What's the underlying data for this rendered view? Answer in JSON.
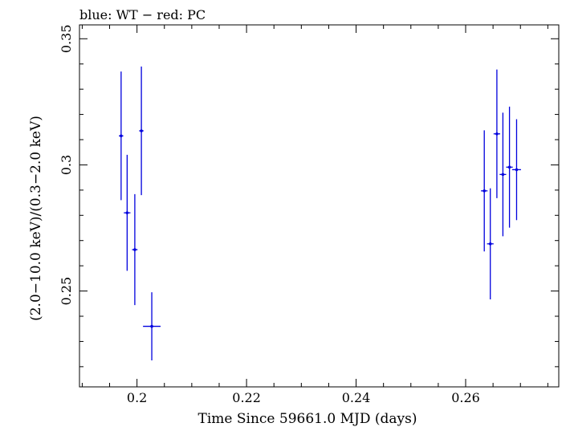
{
  "chart_data": {
    "type": "scatter",
    "title": "blue: WT − red: PC",
    "xlabel": "Time Since 59661.0 MJD (days)",
    "ylabel": "(2.0−10.0 keV)/(0.3−2.0 keV)",
    "xlim": [
      0.1895,
      0.277
    ],
    "ylim": [
      0.212,
      0.3555
    ],
    "xticks": [
      0.2,
      0.22,
      0.24,
      0.26
    ],
    "xtick_labels": [
      "0.2",
      "0.22",
      "0.24",
      "0.26"
    ],
    "yticks": [
      0.25,
      0.3,
      0.35
    ],
    "ytick_labels": [
      "0.25",
      "0.3",
      "0.35"
    ],
    "grid": false,
    "series": [
      {
        "color": "#0000dd",
        "points": [
          {
            "x": 0.1971,
            "y": 0.3115,
            "xerr": 0.0004,
            "yerr_lo": 0.0255,
            "yerr_hi": 0.0255
          },
          {
            "x": 0.1982,
            "y": 0.281,
            "xerr": 0.0006,
            "yerr_lo": 0.023,
            "yerr_hi": 0.023
          },
          {
            "x": 0.1996,
            "y": 0.2664,
            "xerr": 0.0005,
            "yerr_lo": 0.022,
            "yerr_hi": 0.022
          },
          {
            "x": 0.2008,
            "y": 0.3135,
            "xerr": 0.0004,
            "yerr_lo": 0.0255,
            "yerr_hi": 0.0255
          },
          {
            "x": 0.2027,
            "y": 0.236,
            "xerr": 0.0016,
            "yerr_lo": 0.0135,
            "yerr_hi": 0.0135
          },
          {
            "x": 0.2634,
            "y": 0.2897,
            "xerr": 0.0006,
            "yerr_lo": 0.024,
            "yerr_hi": 0.024
          },
          {
            "x": 0.2645,
            "y": 0.2687,
            "xerr": 0.0006,
            "yerr_lo": 0.022,
            "yerr_hi": 0.022
          },
          {
            "x": 0.2657,
            "y": 0.3123,
            "xerr": 0.0006,
            "yerr_lo": 0.0255,
            "yerr_hi": 0.0255
          },
          {
            "x": 0.2668,
            "y": 0.2962,
            "xerr": 0.0006,
            "yerr_lo": 0.0245,
            "yerr_hi": 0.0245
          },
          {
            "x": 0.268,
            "y": 0.2991,
            "xerr": 0.0006,
            "yerr_lo": 0.024,
            "yerr_hi": 0.024
          },
          {
            "x": 0.2693,
            "y": 0.2981,
            "xerr": 0.0008,
            "yerr_lo": 0.02,
            "yerr_hi": 0.02
          }
        ]
      }
    ]
  }
}
